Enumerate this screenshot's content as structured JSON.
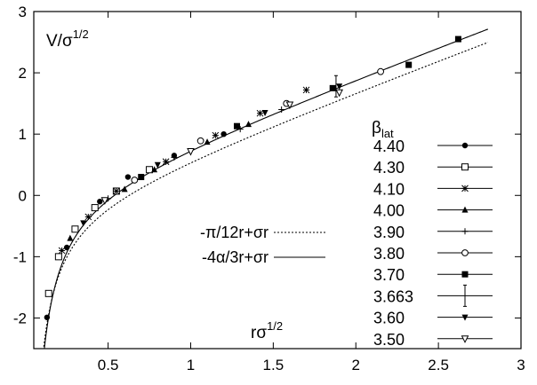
{
  "chart_data": {
    "type": "scatter",
    "xlabel": "rσ",
    "xlabel_sup": "1/2",
    "ylabel": "V/σ",
    "ylabel_sup": "1/2",
    "xlim": [
      0.05,
      3.0
    ],
    "ylim": [
      -2.5,
      3.0
    ],
    "xticks": [
      0.5,
      1,
      1.5,
      2,
      2.5,
      3
    ],
    "xtick_labels": [
      "0.5",
      "1",
      "1.5",
      "2",
      "2.5",
      "3"
    ],
    "yticks": [
      -2,
      -1,
      0,
      1,
      2,
      3
    ],
    "ytick_labels": [
      "-2",
      "-1",
      "0",
      "1",
      "2",
      "3"
    ],
    "legend_title": "β",
    "legend_title_sub": "lat",
    "legend_position": "right",
    "curves": [
      {
        "name": "-π/12r+σr",
        "style": "dotted",
        "color": "#000000",
        "formula": "y = -pi/(12x) + x + c",
        "c": -0.21
      },
      {
        "name": "-4α/3r+σr",
        "style": "solid",
        "color": "#000000",
        "formula": "y = -a/x + x + c",
        "a": 0.3,
        "c": 0.02
      }
    ],
    "series": [
      {
        "name": "4.40",
        "marker": "filled-circle",
        "x": [
          0.13,
          0.25,
          0.45,
          0.62,
          0.9,
          1.2
        ],
        "y": [
          -1.99,
          -0.85,
          -0.1,
          0.3,
          0.65,
          1.0
        ]
      },
      {
        "name": "4.30",
        "marker": "open-square",
        "x": [
          0.14,
          0.2,
          0.3,
          0.42,
          0.55,
          0.75
        ],
        "y": [
          -1.6,
          -1.0,
          -0.55,
          -0.2,
          0.07,
          0.42
        ]
      },
      {
        "name": "4.10",
        "marker": "star",
        "x": [
          0.22,
          0.38,
          0.55,
          0.85,
          1.15,
          1.42,
          1.7
        ],
        "y": [
          -0.9,
          -0.35,
          0.07,
          0.55,
          0.98,
          1.34,
          1.72
        ]
      },
      {
        "name": "4.00",
        "marker": "filled-triangle",
        "x": [
          0.27,
          0.6,
          0.78,
          1.1,
          1.35
        ],
        "y": [
          -0.7,
          0.1,
          0.42,
          0.87,
          1.16
        ]
      },
      {
        "name": "3.90",
        "marker": "plus",
        "x": [
          0.5,
          0.9,
          1.3,
          1.55
        ],
        "y": [
          -0.05,
          0.62,
          1.08,
          1.4
        ]
      },
      {
        "name": "3.80",
        "marker": "open-circle",
        "x": [
          0.66,
          1.06,
          1.58,
          2.15
        ],
        "y": [
          0.25,
          0.89,
          1.5,
          2.02
        ]
      },
      {
        "name": "3.70",
        "marker": "filled-square",
        "x": [
          0.7,
          1.28,
          1.86,
          2.32,
          2.62
        ],
        "y": [
          0.3,
          1.13,
          1.75,
          2.13,
          2.55
        ]
      },
      {
        "name": "3.663",
        "marker": "vertical-bar",
        "x": [
          1.88
        ],
        "y": [
          1.78
        ]
      },
      {
        "name": "3.60",
        "marker": "filled-down-triangle",
        "x": [
          0.35,
          0.8,
          1.45,
          1.9
        ],
        "y": [
          -0.45,
          0.5,
          1.35,
          1.78
        ]
      },
      {
        "name": "3.50",
        "marker": "open-down-triangle",
        "x": [
          0.48,
          1.0,
          1.6,
          1.9
        ],
        "y": [
          -0.08,
          0.72,
          1.48,
          1.68
        ]
      }
    ]
  }
}
